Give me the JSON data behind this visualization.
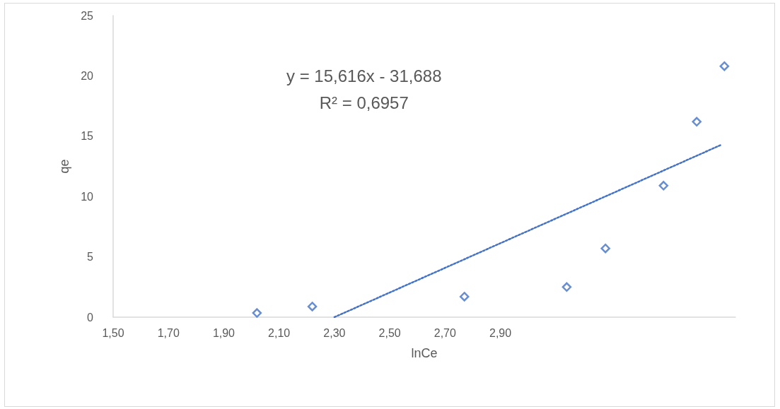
{
  "chart_data": {
    "type": "scatter",
    "xlabel": "lnCe",
    "ylabel": "qe",
    "x": [
      2.02,
      2.22,
      2.77,
      3.14,
      3.28,
      3.49,
      3.61,
      3.71
    ],
    "series": [
      {
        "color": "#4472c4",
        "values": [
          0.35,
          0.88,
          1.7,
          2.5,
          5.7,
          10.9,
          16.2,
          20.8
        ],
        "marker": "diamond"
      },
      {
        "type": "line",
        "color": "#4472c4",
        "x": [
          2.3,
          3.7
        ],
        "values": [
          0,
          14.3
        ],
        "line_style": "dotted",
        "marker": "none"
      }
    ],
    "xlim": [
      1.5,
      3.75
    ],
    "xticks": [
      {
        "value": 1.5,
        "label": "1,50"
      },
      {
        "value": 1.7,
        "label": "1,70"
      },
      {
        "value": 1.9,
        "label": "1,90"
      },
      {
        "value": 2.1,
        "label": "2,10"
      },
      {
        "value": 2.3,
        "label": "2,30"
      },
      {
        "value": 2.5,
        "label": "2,50"
      },
      {
        "value": 2.7,
        "label": "2,70"
      },
      {
        "value": 2.9,
        "label": "2,90"
      }
    ],
    "ylim": [
      0,
      25
    ],
    "yticks": [
      0,
      5,
      10,
      15,
      20,
      25
    ],
    "annotations": [
      "y = 15,616x - 31,688",
      "R² = 0,6957"
    ]
  }
}
